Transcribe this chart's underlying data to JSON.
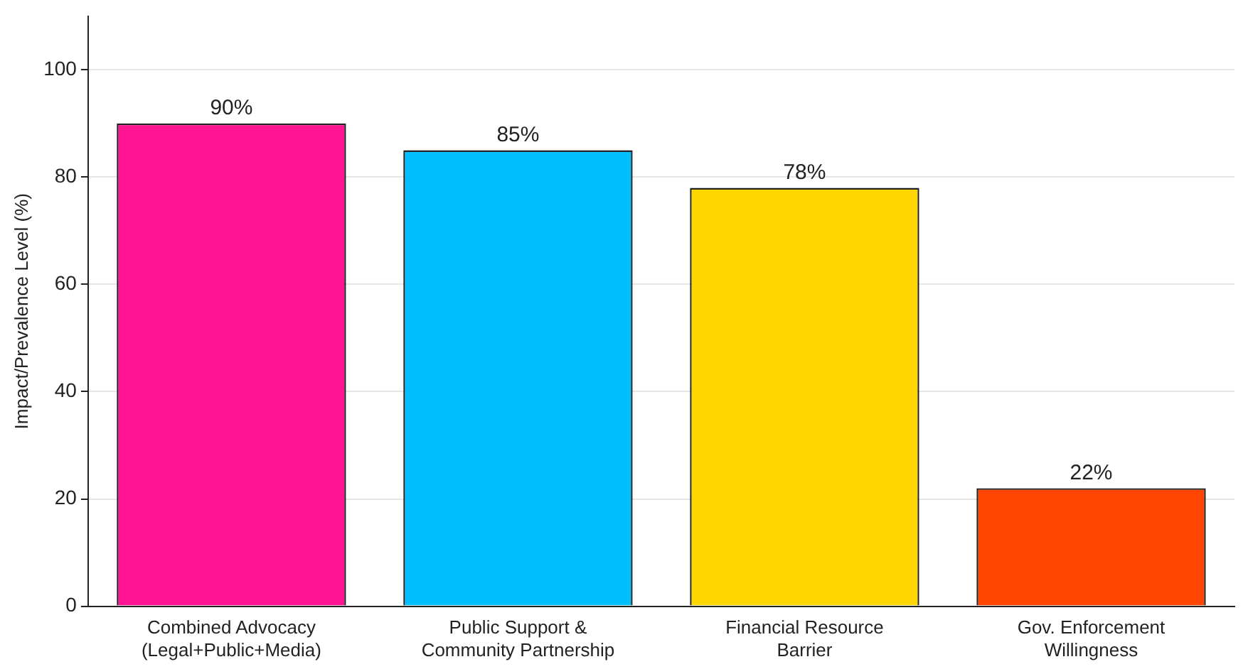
{
  "chart_data": {
    "type": "bar",
    "ylabel": "Impact/Prevalence Level (%)",
    "categories": [
      "Combined Advocacy\n(Legal+Public+Media)",
      "Public Support &\nCommunity Partnership",
      "Financial Resource\nBarrier",
      "Gov. Enforcement\nWillingness"
    ],
    "values": [
      90,
      85,
      78,
      22
    ],
    "colors": [
      "#ff1493",
      "#00bfff",
      "#ffd700",
      "#ff4500"
    ],
    "value_labels": [
      "90%",
      "85%",
      "78%",
      "22%"
    ],
    "ylim": [
      0,
      110
    ],
    "yticks": [
      0,
      20,
      40,
      60,
      80,
      100
    ],
    "grid": "y",
    "legend": false
  }
}
